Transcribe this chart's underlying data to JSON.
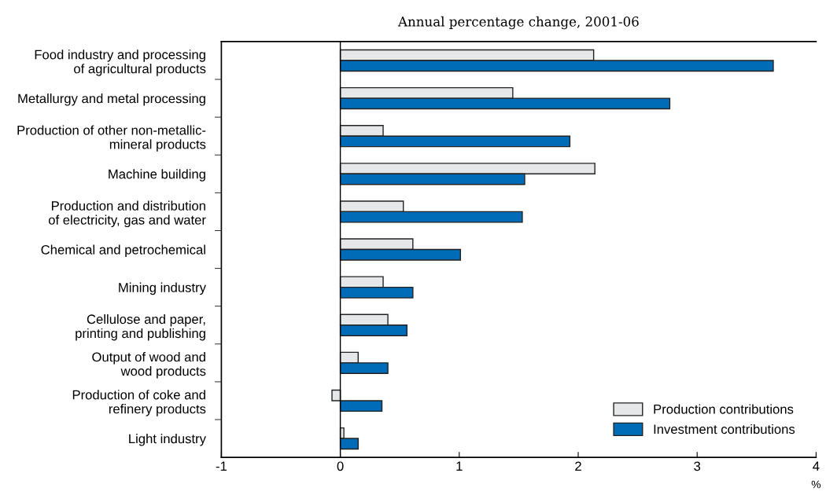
{
  "chart_data": {
    "type": "bar",
    "orientation": "horizontal",
    "title": "Annual percentage change, 2001-06",
    "xlabel": "%",
    "categories": [
      "Food industry and processing\nof agricultural products",
      "Metallurgy and metal processing",
      "Production of other non-metallic-\nmineral products",
      "Machine building",
      "Production and distribution\nof electricity, gas and water",
      "Chemical and petrochemical",
      "Mining industry",
      "Cellulose and paper,\nprinting and publishing",
      "Output of wood and\nwood products",
      "Production of coke and\nrefinery products",
      "Light industry"
    ],
    "series": [
      {
        "name": "Production contributions",
        "color": "#e6e7e8",
        "values": [
          2.13,
          1.45,
          0.36,
          2.14,
          0.53,
          0.61,
          0.36,
          0.4,
          0.15,
          -0.07,
          0.03
        ]
      },
      {
        "name": "Investment contributions",
        "color": "#006bb6",
        "values": [
          3.64,
          2.77,
          1.93,
          1.55,
          1.53,
          1.01,
          0.61,
          0.56,
          0.4,
          0.35,
          0.15
        ]
      }
    ],
    "xlim": [
      -1,
      4
    ],
    "xticks": [
      {
        "value": -1,
        "label": "-1"
      },
      0,
      1,
      2,
      3,
      4
    ],
    "ref_lines": [
      {
        "axis": "x",
        "value": 0,
        "color": "#000000"
      }
    ],
    "grid": false,
    "legend": "bottom right"
  }
}
